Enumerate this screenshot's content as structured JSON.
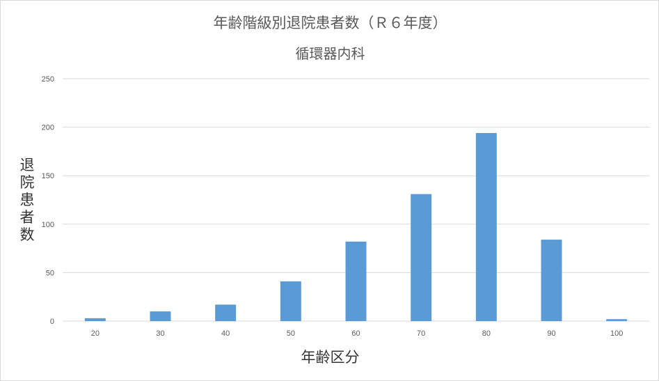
{
  "chart_data": {
    "type": "bar",
    "title": "年齢階級別退院患者数（Ｒ６年度）",
    "subtitle": "循環器内科",
    "xlabel": "年齢区分",
    "ylabel": "退院患者数",
    "categories": [
      "20",
      "30",
      "40",
      "50",
      "60",
      "70",
      "80",
      "90",
      "100"
    ],
    "values": [
      3,
      10,
      17,
      41,
      82,
      131,
      194,
      84,
      2
    ],
    "yticks": [
      "0",
      "50",
      "100",
      "150",
      "200",
      "250"
    ],
    "ylim": [
      0,
      250
    ],
    "grid": true,
    "legend": "none",
    "bar_color": "#5b9bd5",
    "grid_color": "#d9d9d9"
  }
}
